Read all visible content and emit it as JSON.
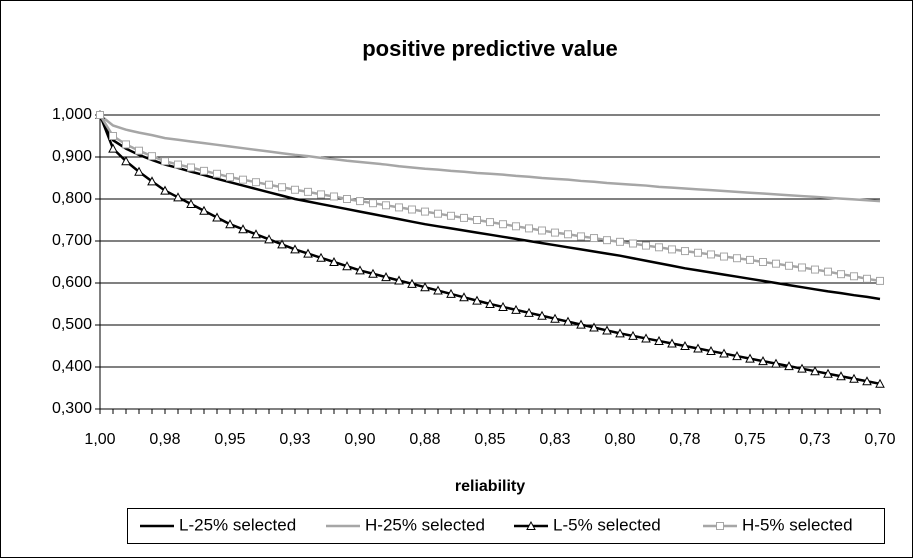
{
  "chart_data": {
    "type": "line",
    "title": "positive predictive value",
    "x_label": "reliability",
    "categories": [
      "1,00",
      null,
      null,
      null,
      null,
      "0,98",
      null,
      null,
      null,
      null,
      "0,95",
      null,
      null,
      null,
      null,
      "0,93",
      null,
      null,
      null,
      null,
      "0,90",
      null,
      null,
      null,
      null,
      "0,88",
      null,
      null,
      null,
      null,
      "0,85",
      null,
      null,
      null,
      null,
      "0,83",
      null,
      null,
      null,
      null,
      "0,80",
      null,
      null,
      null,
      null,
      "0,78",
      null,
      null,
      null,
      null,
      "0,75",
      null,
      null,
      null,
      null,
      "0,73",
      null,
      null,
      null,
      null,
      "0,70"
    ],
    "ylim": [
      0.3,
      1.0
    ],
    "yticks": [
      {
        "value": 0.3,
        "label": "0,300"
      },
      {
        "value": 0.4,
        "label": "0,400"
      },
      {
        "value": 0.5,
        "label": "0,500"
      },
      {
        "value": 0.6,
        "label": "0,600"
      },
      {
        "value": 0.7,
        "label": "0,700"
      },
      {
        "value": 0.8,
        "label": "0,800"
      },
      {
        "value": 0.9,
        "label": "0,900"
      },
      {
        "value": 1.0,
        "label": "1,000"
      }
    ],
    "grid": true,
    "legend": "bottom",
    "series": [
      {
        "name": "L-25% selected",
        "color": "#000000",
        "marker": "none",
        "values": [
          1,
          0.94,
          0.92,
          0.905,
          0.893,
          0.882,
          0.874,
          0.865,
          0.857,
          0.848,
          0.84,
          0.832,
          0.824,
          0.816,
          0.808,
          0.8,
          0.794,
          0.788,
          0.782,
          0.776,
          0.77,
          0.764,
          0.758,
          0.752,
          0.746,
          0.74,
          0.735,
          0.73,
          0.725,
          0.72,
          0.715,
          0.71,
          0.705,
          0.7,
          0.695,
          0.69,
          0.685,
          0.68,
          0.675,
          0.67,
          0.665,
          0.659,
          0.653,
          0.647,
          0.641,
          0.635,
          0.63,
          0.625,
          0.62,
          0.615,
          0.61,
          0.605,
          0.6,
          0.595,
          0.59,
          0.585,
          0.58,
          0.576,
          0.571,
          0.567,
          0.562
        ]
      },
      {
        "name": "H-25% selected",
        "color": "#a6a6a6",
        "marker": "none",
        "values": [
          1,
          0.975,
          0.965,
          0.958,
          0.952,
          0.945,
          0.941,
          0.937,
          0.933,
          0.929,
          0.925,
          0.921,
          0.917,
          0.913,
          0.909,
          0.905,
          0.902,
          0.898,
          0.895,
          0.891,
          0.888,
          0.885,
          0.882,
          0.878,
          0.875,
          0.872,
          0.87,
          0.867,
          0.865,
          0.862,
          0.86,
          0.858,
          0.855,
          0.853,
          0.85,
          0.848,
          0.846,
          0.843,
          0.841,
          0.838,
          0.836,
          0.834,
          0.832,
          0.829,
          0.827,
          0.825,
          0.823,
          0.821,
          0.819,
          0.817,
          0.815,
          0.813,
          0.811,
          0.809,
          0.807,
          0.805,
          0.803,
          0.801,
          0.799,
          0.797,
          0.795
        ]
      },
      {
        "name": "L-5% selected",
        "color": "#000000",
        "marker": "triangle",
        "values": [
          1,
          0.92,
          0.89,
          0.865,
          0.842,
          0.82,
          0.804,
          0.788,
          0.772,
          0.756,
          0.74,
          0.728,
          0.716,
          0.704,
          0.692,
          0.68,
          0.67,
          0.66,
          0.65,
          0.64,
          0.63,
          0.622,
          0.614,
          0.606,
          0.598,
          0.59,
          0.582,
          0.574,
          0.566,
          0.558,
          0.55,
          0.543,
          0.536,
          0.529,
          0.522,
          0.515,
          0.508,
          0.501,
          0.494,
          0.487,
          0.48,
          0.474,
          0.468,
          0.462,
          0.456,
          0.45,
          0.444,
          0.438,
          0.432,
          0.426,
          0.42,
          0.414,
          0.408,
          0.402,
          0.396,
          0.39,
          0.384,
          0.378,
          0.372,
          0.366,
          0.36
        ]
      },
      {
        "name": "H-5% selected",
        "color": "#a6a6a6",
        "marker": "square",
        "values": [
          1,
          0.95,
          0.93,
          0.915,
          0.902,
          0.89,
          0.882,
          0.875,
          0.867,
          0.86,
          0.852,
          0.846,
          0.84,
          0.834,
          0.828,
          0.822,
          0.817,
          0.811,
          0.806,
          0.8,
          0.795,
          0.79,
          0.785,
          0.78,
          0.775,
          0.77,
          0.765,
          0.76,
          0.755,
          0.75,
          0.745,
          0.74,
          0.735,
          0.73,
          0.725,
          0.72,
          0.716,
          0.711,
          0.707,
          0.702,
          0.698,
          0.694,
          0.689,
          0.685,
          0.68,
          0.676,
          0.672,
          0.668,
          0.663,
          0.659,
          0.655,
          0.65,
          0.646,
          0.641,
          0.637,
          0.632,
          0.627,
          0.621,
          0.616,
          0.61,
          0.605
        ]
      }
    ]
  }
}
